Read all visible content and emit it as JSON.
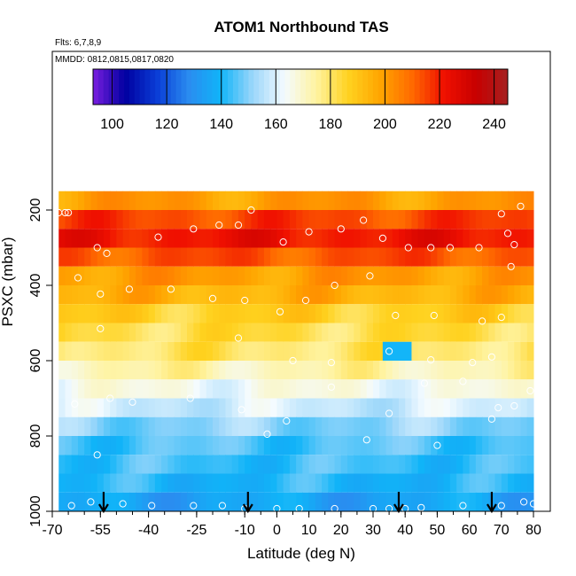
{
  "chart_data": {
    "type": "heatmap",
    "title": "ATOM1 Northbound TAS",
    "annotations": [
      "Flts: 6,7,8,9",
      "MMDD: 0812,0815,0817,0820"
    ],
    "xlabel": "Latitude (deg N)",
    "ylabel": "PSXC (mbar)",
    "xlim": [
      -70,
      80
    ],
    "ylim": [
      1000,
      100
    ],
    "y_reversed": true,
    "xticks": [
      -70,
      -55,
      -40,
      -25,
      -10,
      0,
      10,
      20,
      30,
      40,
      50,
      60,
      70,
      80
    ],
    "xtick_labels": [
      "-70",
      "-55",
      "-40",
      "-25",
      "-10",
      "0",
      "10",
      "20",
      "30",
      "40",
      "50",
      "60",
      "70",
      "80"
    ],
    "yticks": [
      200,
      400,
      600,
      800,
      1000
    ],
    "ytick_labels": [
      "200",
      "400",
      "600",
      "800",
      "1000"
    ],
    "colorbar": {
      "ticks": [
        100,
        120,
        140,
        160,
        180,
        200,
        220,
        240
      ],
      "tick_labels": [
        "100",
        "120",
        "140",
        "160",
        "180",
        "200",
        "220",
        "240"
      ],
      "range": [
        93,
        245
      ],
      "colors": [
        "#7a1fe0",
        "#0000a0",
        "#0a3dd6",
        "#2a8cf0",
        "#10b4f8",
        "#9ad6fa",
        "#f4fbff",
        "#fff3a0",
        "#ffd21f",
        "#ffa500",
        "#ff6a00",
        "#f01000",
        "#c80000",
        "#a52020"
      ]
    },
    "pressure_levels": [
      175,
      225,
      275,
      325,
      375,
      425,
      475,
      525,
      575,
      625,
      675,
      725,
      775,
      825,
      875,
      925,
      975
    ],
    "lat_range": [
      -68,
      80
    ],
    "level_values": [
      200,
      215,
      222,
      213,
      200,
      195,
      187,
      183,
      180,
      173,
      165,
      158,
      150,
      145,
      143,
      140,
      135
    ],
    "anomalies": [
      {
        "lat_from": 33,
        "lat_to": 42,
        "level": 575,
        "value": 140
      }
    ],
    "flight_markers_lat": [
      -54,
      -9,
      38,
      67
    ],
    "sample_points": [
      {
        "lat": -68,
        "p": 207
      },
      {
        "lat": -66,
        "p": 207
      },
      {
        "lat": -65,
        "p": 207
      },
      {
        "lat": -56,
        "p": 300
      },
      {
        "lat": -53,
        "p": 315
      },
      {
        "lat": -37,
        "p": 272
      },
      {
        "lat": -26,
        "p": 250
      },
      {
        "lat": -18,
        "p": 240
      },
      {
        "lat": -12,
        "p": 240
      },
      {
        "lat": -8,
        "p": 200
      },
      {
        "lat": 2,
        "p": 285
      },
      {
        "lat": 10,
        "p": 258
      },
      {
        "lat": 20,
        "p": 250
      },
      {
        "lat": 27,
        "p": 227
      },
      {
        "lat": 33,
        "p": 275
      },
      {
        "lat": 41,
        "p": 300
      },
      {
        "lat": 48,
        "p": 300
      },
      {
        "lat": 54,
        "p": 300
      },
      {
        "lat": 63,
        "p": 300
      },
      {
        "lat": 70,
        "p": 210
      },
      {
        "lat": 72,
        "p": 262
      },
      {
        "lat": 74,
        "p": 292
      },
      {
        "lat": 76,
        "p": 190
      },
      {
        "lat": -70,
        "p": 340
      },
      {
        "lat": -62,
        "p": 380
      },
      {
        "lat": -55,
        "p": 423
      },
      {
        "lat": -46,
        "p": 410
      },
      {
        "lat": -33,
        "p": 410
      },
      {
        "lat": -20,
        "p": 435
      },
      {
        "lat": -10,
        "p": 440
      },
      {
        "lat": 1,
        "p": 470
      },
      {
        "lat": 9,
        "p": 440
      },
      {
        "lat": 18,
        "p": 400
      },
      {
        "lat": 29,
        "p": 375
      },
      {
        "lat": 37,
        "p": 480
      },
      {
        "lat": 49,
        "p": 480
      },
      {
        "lat": 64,
        "p": 495
      },
      {
        "lat": 70,
        "p": 485
      },
      {
        "lat": 73,
        "p": 350
      },
      {
        "lat": -55,
        "p": 515
      },
      {
        "lat": -12,
        "p": 540
      },
      {
        "lat": 5,
        "p": 600
      },
      {
        "lat": 17,
        "p": 605
      },
      {
        "lat": 35,
        "p": 575
      },
      {
        "lat": 48,
        "p": 598
      },
      {
        "lat": 61,
        "p": 605
      },
      {
        "lat": 67,
        "p": 590
      },
      {
        "lat": -63,
        "p": 715
      },
      {
        "lat": -52,
        "p": 700
      },
      {
        "lat": -45,
        "p": 710
      },
      {
        "lat": -27,
        "p": 700
      },
      {
        "lat": -11,
        "p": 730
      },
      {
        "lat": 3,
        "p": 760
      },
      {
        "lat": 17,
        "p": 670
      },
      {
        "lat": 35,
        "p": 740
      },
      {
        "lat": 46,
        "p": 660
      },
      {
        "lat": 58,
        "p": 655
      },
      {
        "lat": 67,
        "p": 755
      },
      {
        "lat": 69,
        "p": 725
      },
      {
        "lat": 74,
        "p": 720
      },
      {
        "lat": 79,
        "p": 680
      },
      {
        "lat": -3,
        "p": 795
      },
      {
        "lat": 28,
        "p": 810
      },
      {
        "lat": 50,
        "p": 825
      },
      {
        "lat": -56,
        "p": 850
      },
      {
        "lat": -64,
        "p": 985
      },
      {
        "lat": -58,
        "p": 975
      },
      {
        "lat": -48,
        "p": 980
      },
      {
        "lat": -39,
        "p": 985
      },
      {
        "lat": -26,
        "p": 985
      },
      {
        "lat": -17,
        "p": 985
      },
      {
        "lat": -10,
        "p": 993
      },
      {
        "lat": 0,
        "p": 993
      },
      {
        "lat": 7,
        "p": 993
      },
      {
        "lat": 18,
        "p": 993
      },
      {
        "lat": 30,
        "p": 993
      },
      {
        "lat": 35,
        "p": 993
      },
      {
        "lat": 40,
        "p": 993
      },
      {
        "lat": 45,
        "p": 990
      },
      {
        "lat": 58,
        "p": 985
      },
      {
        "lat": 70,
        "p": 985
      },
      {
        "lat": 77,
        "p": 975
      },
      {
        "lat": 80,
        "p": 980
      }
    ]
  }
}
